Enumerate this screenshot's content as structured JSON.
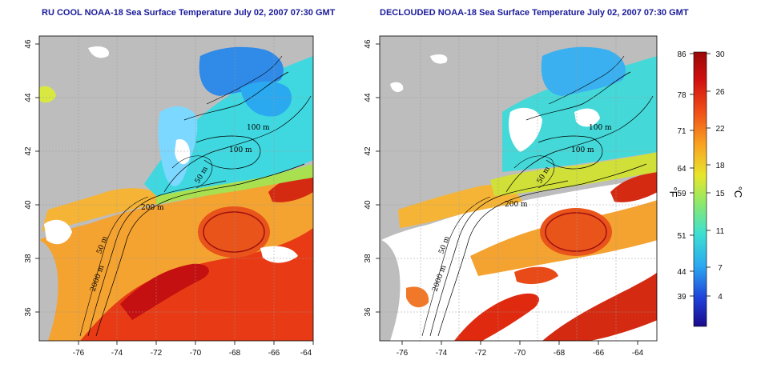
{
  "panels": [
    {
      "id": "left",
      "title": "RU COOL NOAA-18 Sea Surface Temperature July 02, 2007 07:30 GMT",
      "contour_labels": [
        "100 m",
        "100 m",
        "50 m",
        "200 m",
        "50 m",
        "2000 m"
      ]
    },
    {
      "id": "right",
      "title": "DECLOUDED NOAA-18 Sea Surface Temperature July 02, 2007 07:30 GMT",
      "contour_labels": [
        "100 m",
        "100 m",
        "50 m",
        "200 m",
        "50 m",
        "2000 m"
      ]
    }
  ],
  "axes": {
    "x_ticks": [
      "-76",
      "-74",
      "-72",
      "-70",
      "-68",
      "-66",
      "-64"
    ],
    "y_ticks": [
      "36",
      "38",
      "40",
      "42",
      "44",
      "46"
    ]
  },
  "colorbar": {
    "fahrenheit_ticks": [
      "86",
      "78",
      "71",
      "64",
      "59",
      "51",
      "44",
      "39"
    ],
    "celsius_ticks": [
      "30",
      "26",
      "22",
      "18",
      "15",
      "11",
      "7",
      "4"
    ],
    "fahrenheit_label": "°F",
    "celsius_label": "°C",
    "gradient_colors": [
      "#1a0a8a",
      "#1f3fd8",
      "#2aa8f0",
      "#3ee0d0",
      "#8ee86a",
      "#e8e62c",
      "#f8a420",
      "#f05018",
      "#d01010",
      "#9a0808"
    ]
  },
  "colors": {
    "land": "#bdbdbd",
    "cloud": "#ffffff",
    "contour": "#000000",
    "title": "#1a1a9a"
  }
}
